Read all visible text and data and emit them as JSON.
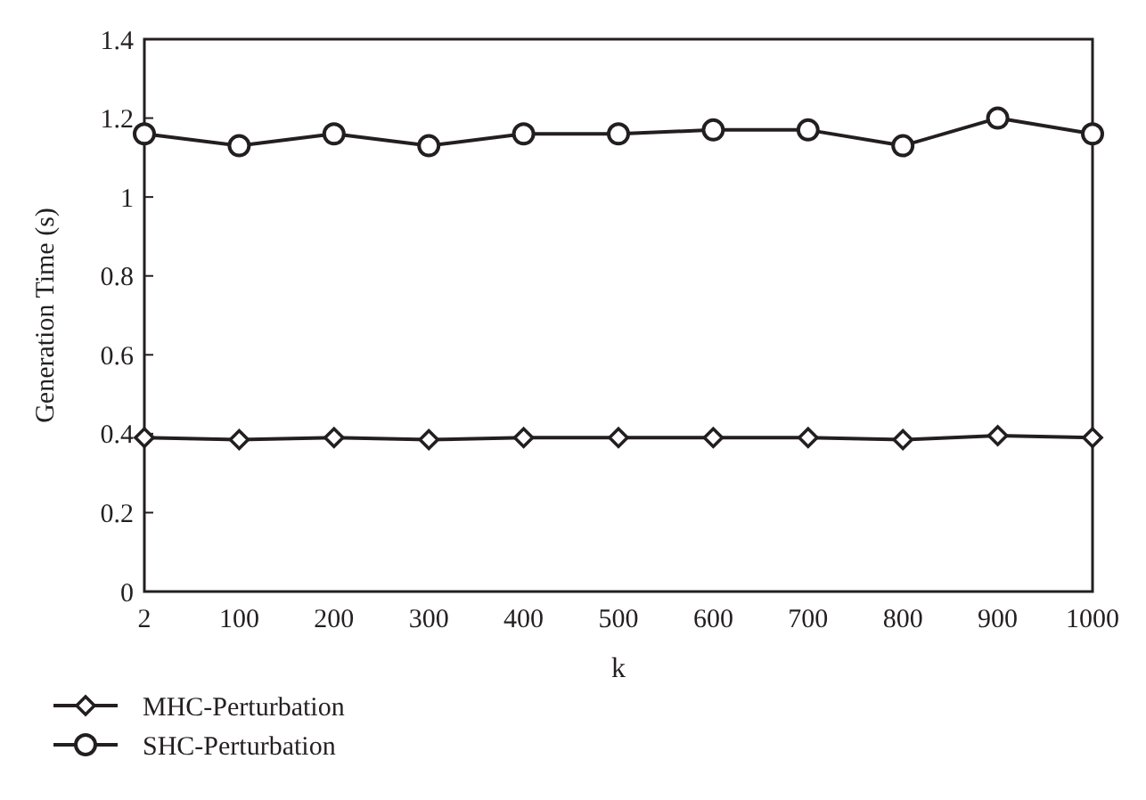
{
  "chart_data": {
    "type": "line",
    "xlabel": "k",
    "ylabel": "Generation Time (s)",
    "categories": [
      "2",
      "100",
      "200",
      "300",
      "400",
      "500",
      "600",
      "700",
      "800",
      "900",
      "1000"
    ],
    "series": [
      {
        "name": "MHC-Perturbation",
        "color": "#231f20",
        "marker": "diamond",
        "values": [
          0.39,
          0.385,
          0.39,
          0.385,
          0.39,
          0.39,
          0.39,
          0.39,
          0.385,
          0.395,
          0.39
        ]
      },
      {
        "name": "SHC-Perturbation",
        "color": "#231f20",
        "marker": "circle",
        "values": [
          1.16,
          1.13,
          1.16,
          1.13,
          1.16,
          1.16,
          1.17,
          1.17,
          1.13,
          1.2,
          1.16
        ]
      }
    ],
    "ylim": [
      0,
      1.4
    ],
    "yticks": [
      0,
      0.2,
      0.4,
      0.6,
      0.8,
      1,
      1.2,
      1.4
    ],
    "grid": false,
    "legend": "bottom left",
    "line_style": "solid"
  }
}
